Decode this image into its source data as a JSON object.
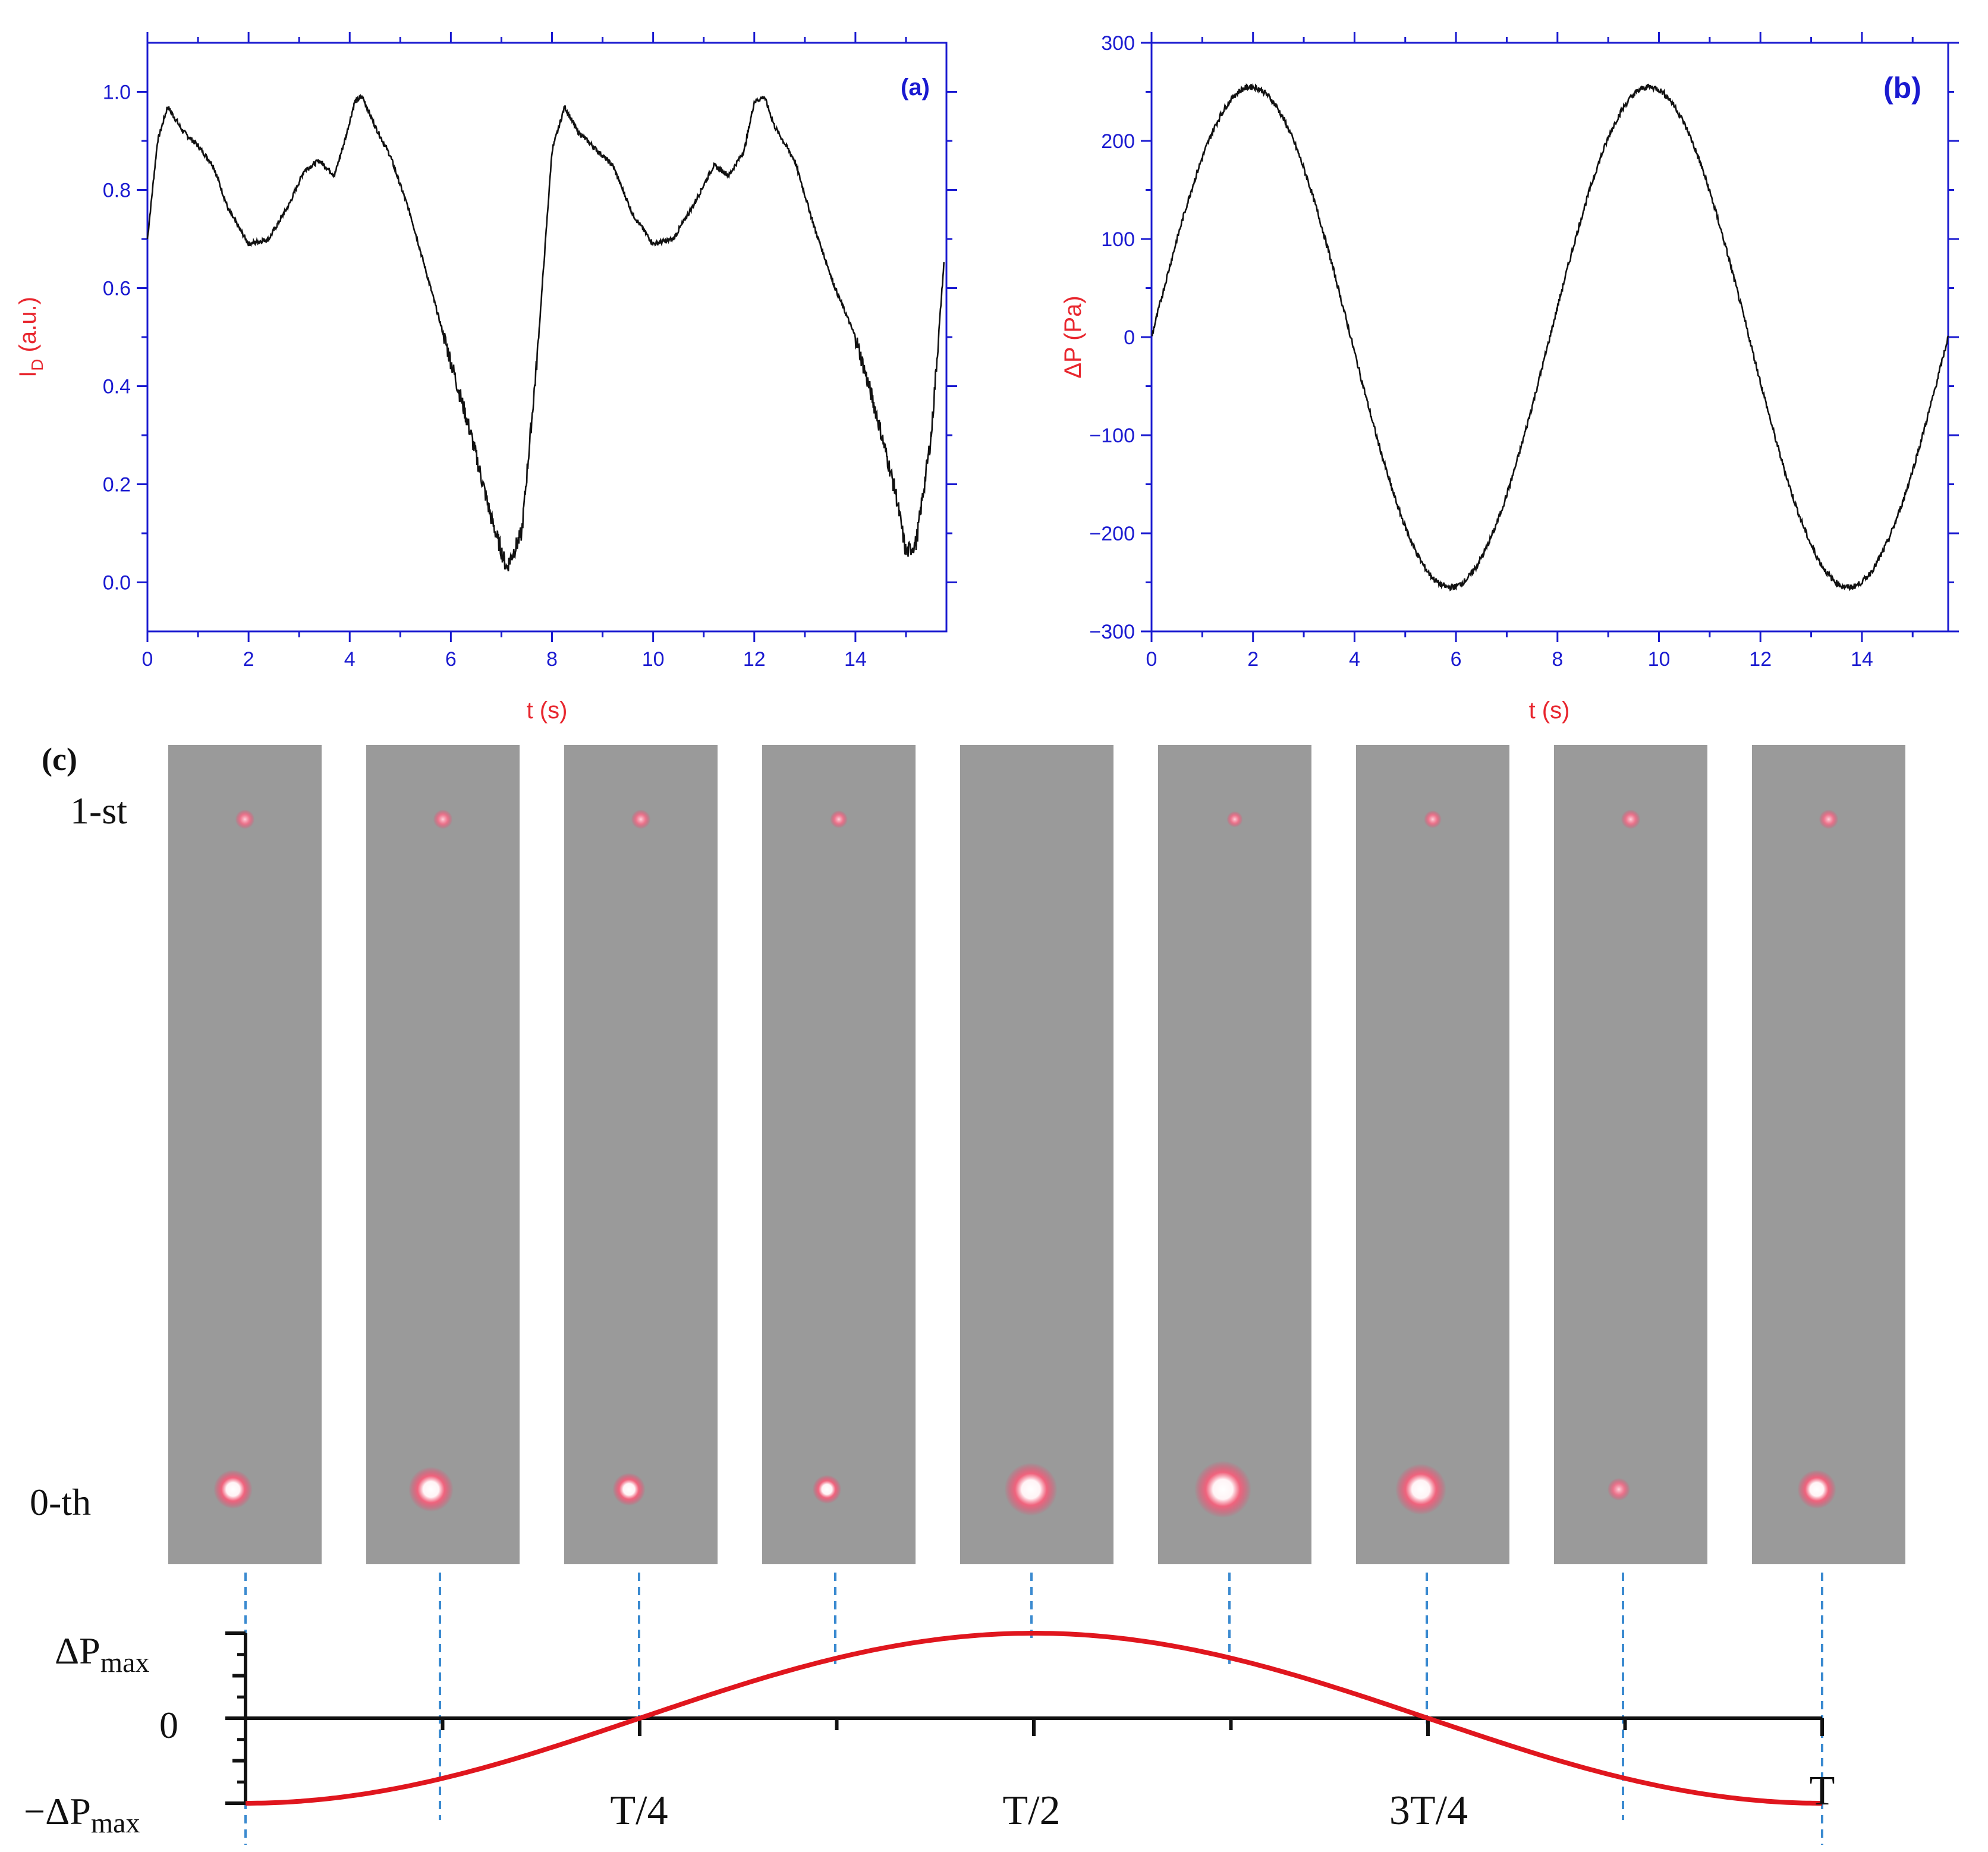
{
  "chart_data": [
    {
      "type": "line",
      "panel": "(a)",
      "title": "",
      "xlabel": "t (s)",
      "ylabel_main": "I",
      "ylabel_sub": "D",
      "ylabel_unit": " (a.u.)",
      "xlim": [
        0,
        15.8
      ],
      "ylim": [
        -0.1,
        1.1
      ],
      "xticks": [
        0,
        2,
        4,
        6,
        8,
        10,
        12,
        14
      ],
      "yticks": [
        0.0,
        0.2,
        0.4,
        0.6,
        0.8,
        1.0
      ],
      "ytick_labels": [
        "0.0",
        "0.2",
        "0.4",
        "0.6",
        "0.8",
        "1.0"
      ],
      "series": [
        {
          "name": "I_D",
          "x": [
            0,
            0.2,
            0.4,
            0.7,
            1.0,
            1.3,
            1.6,
            2.0,
            2.4,
            2.8,
            3.1,
            3.4,
            3.7,
            3.9,
            4.1,
            4.25,
            4.5,
            4.8,
            5.2,
            5.6,
            6.0,
            6.4,
            6.8,
            7.1,
            7.4,
            7.7,
            8.0,
            8.25,
            8.5,
            8.8,
            9.2,
            9.6,
            10.0,
            10.4,
            10.8,
            11.2,
            11.5,
            11.8,
            12.0,
            12.2,
            12.4,
            12.8,
            13.2,
            13.6,
            14.0,
            14.4,
            14.8,
            15.0,
            15.2,
            15.5,
            15.75
          ],
          "y": [
            0.7,
            0.9,
            0.97,
            0.92,
            0.89,
            0.85,
            0.76,
            0.69,
            0.7,
            0.77,
            0.84,
            0.86,
            0.83,
            0.9,
            0.98,
            0.99,
            0.93,
            0.87,
            0.75,
            0.6,
            0.45,
            0.3,
            0.13,
            0.03,
            0.1,
            0.45,
            0.88,
            0.97,
            0.92,
            0.89,
            0.85,
            0.75,
            0.69,
            0.7,
            0.77,
            0.85,
            0.83,
            0.88,
            0.98,
            0.99,
            0.93,
            0.86,
            0.72,
            0.6,
            0.5,
            0.35,
            0.18,
            0.06,
            0.08,
            0.3,
            0.65
          ]
        }
      ]
    },
    {
      "type": "line",
      "panel": "(b)",
      "title": "",
      "xlabel": "t (s)",
      "ylabel": "ΔP (Pa)",
      "xlim": [
        0,
        15.7
      ],
      "ylim": [
        -300,
        300
      ],
      "xticks": [
        0,
        2,
        4,
        6,
        8,
        10,
        12,
        14
      ],
      "yticks": [
        -300,
        -200,
        -100,
        0,
        100,
        200,
        300
      ],
      "ytick_labels": [
        "−300",
        "−200",
        "−100",
        "0",
        "100",
        "200",
        "300"
      ],
      "series": [
        {
          "name": "ΔP",
          "function": "sine",
          "amplitude": 255,
          "period_s": 7.85,
          "phase_s": 0,
          "x_end": 15.7
        }
      ]
    },
    {
      "type": "line",
      "panel": "(c)",
      "title": "",
      "x_tick_labels": [
        "T/4",
        "T/2",
        "3T/4",
        "T"
      ],
      "y_tick_labels": [
        "ΔP",
        "0",
        "−ΔP"
      ],
      "y_tick_subscript": "max",
      "order_labels": [
        "1-st",
        "0-th"
      ],
      "frames": [
        {
          "phase": 0.0,
          "order0_size": 0.55,
          "order1_size": 0.45
        },
        {
          "phase": 0.125,
          "order0_size": 0.7,
          "order1_size": 0.45
        },
        {
          "phase": 0.25,
          "order0_size": 0.4,
          "order1_size": 0.45
        },
        {
          "phase": 0.375,
          "order0_size": 0.3,
          "order1_size": 0.35
        },
        {
          "phase": 0.5,
          "order0_size": 0.9,
          "order1_size": 0.0
        },
        {
          "phase": 0.625,
          "order0_size": 1.0,
          "order1_size": 0.25
        },
        {
          "phase": 0.75,
          "order0_size": 0.85,
          "order1_size": 0.35
        },
        {
          "phase": 0.875,
          "order0_size": 0.15,
          "order1_size": 0.45
        },
        {
          "phase": 1.0,
          "order0_size": 0.55,
          "order1_size": 0.45
        }
      ],
      "series": [
        {
          "name": "ΔP(t)",
          "function": "-cos(2πt/T)",
          "x": [
            0,
            0.125,
            0.25,
            0.375,
            0.5,
            0.625,
            0.75,
            0.875,
            1.0
          ],
          "y": [
            -1,
            -0.707,
            0,
            0.707,
            1,
            0.707,
            0,
            -0.707,
            -1
          ]
        }
      ]
    }
  ],
  "colors": {
    "axis": "#1a1ad0",
    "axis_title": "#e8262e",
    "trace": "#111111",
    "sine_red": "#e0161e",
    "dash": "#3a8ad0",
    "photo_bg": "#9a9a9a"
  }
}
